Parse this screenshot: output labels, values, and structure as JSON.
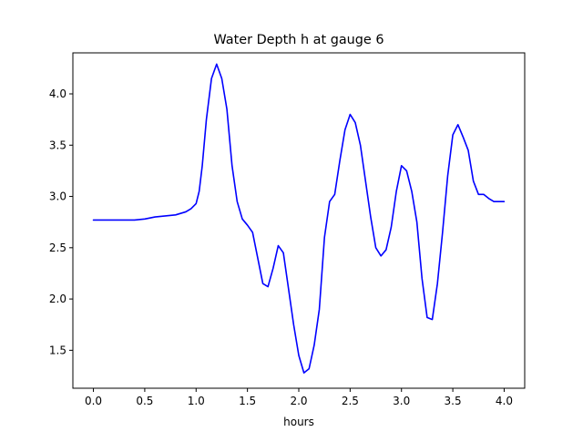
{
  "chart_data": {
    "type": "line",
    "title": "Water Depth h at gauge 6",
    "xlabel": "hours",
    "ylabel": "",
    "xlim": [
      -0.2,
      4.2
    ],
    "ylim": [
      1.13,
      4.4
    ],
    "xticks": [
      0.0,
      0.5,
      1.0,
      1.5,
      2.0,
      2.5,
      3.0,
      3.5,
      4.0
    ],
    "xtick_labels": [
      "0.0",
      "0.5",
      "1.0",
      "1.5",
      "2.0",
      "2.5",
      "3.0",
      "3.5",
      "4.0"
    ],
    "yticks": [
      1.5,
      2.0,
      2.5,
      3.0,
      3.5,
      4.0
    ],
    "ytick_labels": [
      "1.5",
      "2.0",
      "2.5",
      "3.0",
      "3.5",
      "4.0"
    ],
    "grid": false,
    "legend": "none",
    "series": [
      {
        "color": "#0000ff",
        "x": [
          0.0,
          0.2,
          0.4,
          0.5,
          0.55,
          0.6,
          0.7,
          0.8,
          0.9,
          0.95,
          1.0,
          1.03,
          1.06,
          1.1,
          1.15,
          1.2,
          1.25,
          1.3,
          1.35,
          1.4,
          1.45,
          1.5,
          1.55,
          1.6,
          1.65,
          1.7,
          1.75,
          1.8,
          1.85,
          1.9,
          1.95,
          2.0,
          2.05,
          2.1,
          2.15,
          2.2,
          2.25,
          2.3,
          2.35,
          2.4,
          2.45,
          2.5,
          2.55,
          2.6,
          2.65,
          2.7,
          2.75,
          2.8,
          2.85,
          2.9,
          2.95,
          3.0,
          3.05,
          3.1,
          3.15,
          3.2,
          3.25,
          3.3,
          3.35,
          3.4,
          3.45,
          3.5,
          3.55,
          3.6,
          3.65,
          3.7,
          3.75,
          3.8,
          3.85,
          3.9,
          3.95,
          4.0
        ],
        "y": [
          2.77,
          2.77,
          2.77,
          2.78,
          2.79,
          2.8,
          2.81,
          2.82,
          2.85,
          2.88,
          2.93,
          3.05,
          3.3,
          3.75,
          4.15,
          4.29,
          4.15,
          3.85,
          3.3,
          2.95,
          2.78,
          2.72,
          2.65,
          2.4,
          2.15,
          2.12,
          2.3,
          2.52,
          2.45,
          2.1,
          1.75,
          1.45,
          1.28,
          1.32,
          1.55,
          1.9,
          2.6,
          2.95,
          3.02,
          3.35,
          3.65,
          3.8,
          3.72,
          3.5,
          3.15,
          2.8,
          2.5,
          2.42,
          2.48,
          2.7,
          3.05,
          3.3,
          3.25,
          3.05,
          2.75,
          2.2,
          1.82,
          1.8,
          2.15,
          2.65,
          3.2,
          3.6,
          3.7,
          3.58,
          3.45,
          3.15,
          3.02,
          3.02,
          2.98,
          2.95,
          2.95,
          2.95
        ]
      }
    ]
  }
}
